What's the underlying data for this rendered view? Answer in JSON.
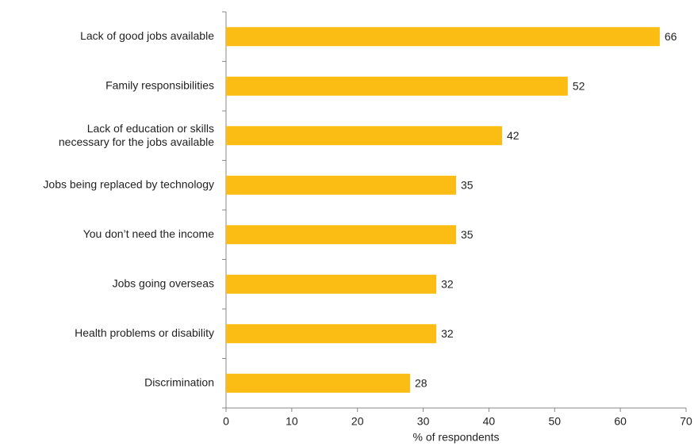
{
  "chart_data": {
    "type": "bar",
    "orientation": "horizontal",
    "categories": [
      "Lack of good jobs available",
      "Family responsibilities",
      [
        "Lack of education or skills",
        "necessary for the jobs available"
      ],
      "Jobs being replaced by technology",
      "You don’t need the income",
      "Jobs going overseas",
      "Health problems or disability",
      "Discrimination"
    ],
    "values": [
      66,
      52,
      42,
      35,
      35,
      32,
      32,
      28
    ],
    "color": "#fbbd14",
    "xlim": [
      0,
      70
    ],
    "xticks": [
      0,
      10,
      20,
      30,
      40,
      50,
      60,
      70
    ],
    "x_label": "% of respondents"
  }
}
